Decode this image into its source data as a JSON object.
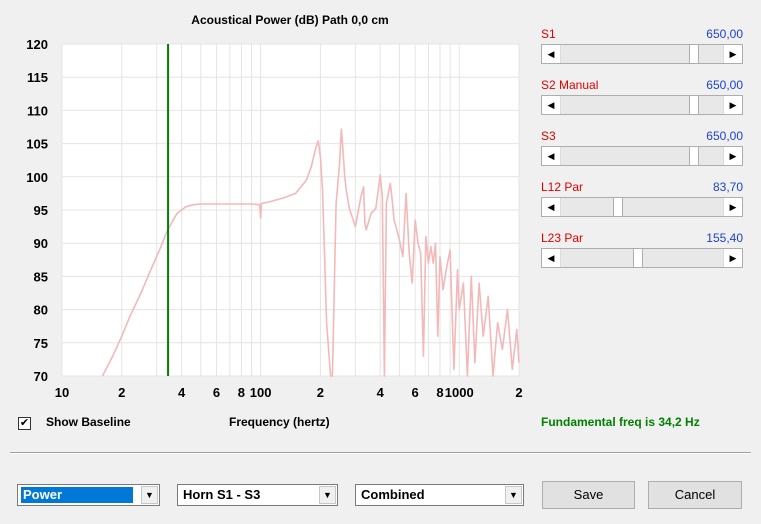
{
  "chart": {
    "title": "Acoustical Power (dB)   Path 0,0 cm",
    "xlabel": "Frequency (hertz)"
  },
  "chart_data": {
    "type": "line",
    "title": "Acoustical Power (dB)   Path 0,0 cm",
    "xlabel": "Frequency (hertz)",
    "ylabel": "",
    "xscale": "log",
    "xlim": [
      10,
      2000
    ],
    "ylim": [
      70,
      120
    ],
    "grid": true,
    "y_ticks": [
      120,
      115,
      110,
      105,
      100,
      95,
      90,
      85,
      80,
      75,
      70
    ],
    "x_tick_labels": [
      "10",
      "2",
      "4",
      "6",
      "8",
      "100",
      "2",
      "4",
      "6",
      "8",
      "1000",
      "2"
    ],
    "x_tick_values": [
      10,
      20,
      40,
      60,
      80,
      100,
      200,
      400,
      600,
      800,
      1000,
      2000
    ],
    "marker_line": {
      "x": 34.2,
      "color": "#007f00"
    },
    "series": [
      {
        "color": "#f4b8b8",
        "x": [
          16,
          18,
          20,
          22,
          25,
          28,
          31,
          34,
          38,
          42,
          46,
          50,
          60,
          70,
          80,
          90,
          99,
          100,
          101,
          110,
          130,
          150,
          170,
          180,
          190,
          195,
          200,
          205,
          210,
          215,
          220,
          225,
          230,
          240,
          250,
          255,
          260,
          265,
          270,
          275,
          280,
          300,
          320,
          330,
          335,
          340,
          360,
          380,
          400,
          410,
          420,
          430,
          450,
          460,
          470,
          490,
          500,
          520,
          540,
          560,
          580,
          600,
          620,
          640,
          660,
          680,
          700,
          720,
          740,
          760,
          780,
          800,
          830,
          860,
          900,
          940,
          980,
          1000,
          1050,
          1100,
          1150,
          1200,
          1260,
          1320,
          1400,
          1480,
          1560,
          1650,
          1750,
          1850,
          1950,
          2000
        ],
        "y": [
          70,
          73,
          76,
          79,
          82.5,
          86,
          89,
          92,
          94.5,
          95.5,
          95.8,
          95.9,
          95.9,
          95.9,
          95.9,
          95.9,
          95.8,
          93.8,
          96,
          96.2,
          96.8,
          97.5,
          99.5,
          101.5,
          104.5,
          105.4,
          103,
          98,
          88,
          78,
          74,
          70,
          70,
          96,
          102,
          107.2,
          104,
          100,
          98,
          96.5,
          95.2,
          92.5,
          97,
          98.5,
          93,
          92,
          94.5,
          95.2,
          100.3,
          97,
          70,
          96,
          99,
          96.5,
          93.5,
          91.5,
          90.5,
          88,
          97.5,
          88.5,
          84,
          93.5,
          90,
          88.5,
          73,
          91,
          87,
          89.5,
          87,
          90,
          76,
          88,
          83,
          86,
          89,
          71,
          86,
          80,
          84,
          70,
          85,
          72,
          84,
          76,
          82,
          70,
          78,
          74,
          80,
          71,
          77,
          72
        ]
      }
    ]
  },
  "sliders": [
    {
      "label": "S1",
      "value": "650,00",
      "position": 0.83
    },
    {
      "label": "S2  Manual",
      "value": "650,00",
      "position": 0.83
    },
    {
      "label": "S3",
      "value": "650,00",
      "position": 0.83
    },
    {
      "label": "L12  Par",
      "value": "83,70",
      "position": 0.34
    },
    {
      "label": "L23  Par",
      "value": "155,40",
      "position": 0.47
    }
  ],
  "show_baseline": {
    "label": "Show Baseline",
    "checked": true
  },
  "fundamental": {
    "text": "Fundamental freq is 34,2 Hz",
    "color": "#008000"
  },
  "controls": {
    "mode_select": "Power",
    "horn_select": "Horn S1 - S3",
    "combine_select": "Combined",
    "save_label": "Save",
    "cancel_label": "Cancel"
  },
  "colors": {
    "label_red": "#e00000",
    "value_blue": "#1c44c8",
    "grid": "#e4e4e4",
    "curve": "#f4b8b8",
    "marker": "#007f00"
  }
}
